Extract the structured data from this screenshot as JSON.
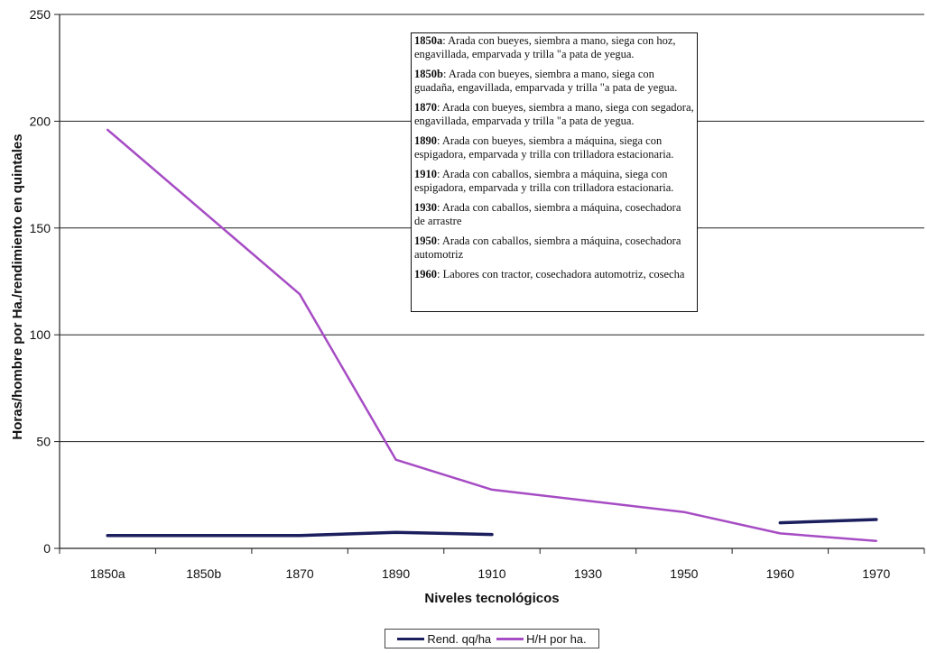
{
  "chart_data": {
    "type": "line",
    "title": "",
    "xlabel": "Niveles tecnológicos",
    "ylabel": "Horas/hombre por Ha./rendimiento en quintales",
    "categories": [
      "1850a",
      "1850b",
      "1870",
      "1890",
      "1910",
      "1930",
      "1950",
      "1960",
      "1970"
    ],
    "ylim": [
      0,
      250
    ],
    "yticks": [
      0,
      50,
      100,
      150,
      200,
      250
    ],
    "grid": "horizontal",
    "legend_position": "bottom",
    "series": [
      {
        "name": "Rend. qq/ha",
        "color": "#1c1f5e",
        "values": [
          6,
          null,
          6,
          7.5,
          6.5,
          null,
          null,
          12,
          13.5
        ]
      },
      {
        "name": "H/H por ha.",
        "color": "#a64cc4",
        "values": [
          196,
          null,
          119,
          41.5,
          27.5,
          null,
          17,
          7,
          3.5
        ]
      }
    ],
    "annotation": {
      "entries": [
        {
          "label": "1850a",
          "text": ": Arada con bueyes, siembra a mano, siega con hoz, engavillada, emparvada y trilla \"a pata de yegua."
        },
        {
          "label": "1850b",
          "text": ": Arada con bueyes, siembra a mano, siega con guadaña, engavillada, emparvada y trilla \"a pata de yegua."
        },
        {
          "label": "1870",
          "text": ": Arada con bueyes, siembra a mano, siega con segadora, engavillada, emparvada y trilla \"a pata de yegua."
        },
        {
          "label": "1890",
          "text": ": Arada con bueyes, siembra a máquina, siega con espigadora, emparvada y trilla con trilladora estacionaria."
        },
        {
          "label": "1910",
          "text": ": Arada con caballos, siembra a máquina, siega con espigadora, emparvada y trilla con trilladora estacionaria."
        },
        {
          "label": "1930",
          "text": ": Arada con caballos, siembra a máquina, cosechadora de arrastre"
        },
        {
          "label": "1950",
          "text": ": Arada con caballos, siembra a máquina, cosechadora automotriz"
        },
        {
          "label": "1960",
          "text": ": Labores con tractor, cosechadora automotriz, cosecha"
        }
      ]
    }
  }
}
